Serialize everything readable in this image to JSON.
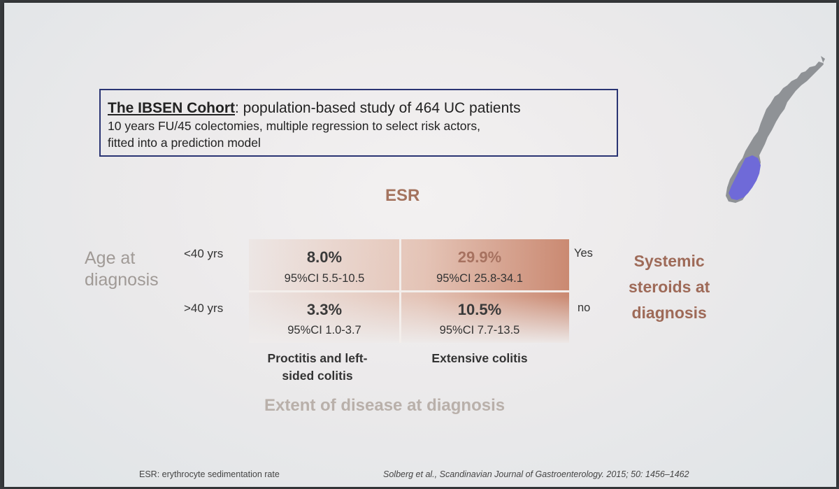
{
  "cohort": {
    "name": "The IBSEN Cohort",
    "summary": ": population-based study of 464 UC patients",
    "line2": "10 years FU/45 colectomies, multiple regression to select risk  actors,",
    "line3": "fitted into a prediction model"
  },
  "esr_heading": "ESR",
  "axis_labels": {
    "age": [
      "Age at",
      "diagnosis"
    ],
    "rows": [
      "<40 yrs",
      ">40 yrs"
    ],
    "steroids_options": [
      "Yes",
      "no"
    ],
    "steroids": [
      "Systemic",
      "steroids at",
      "diagnosis"
    ],
    "columns": [
      [
        "Proctitis and left-",
        "sided colitis"
      ],
      [
        "Extensive colitis"
      ]
    ],
    "extent": "Extent of disease at diagnosis"
  },
  "cells": [
    {
      "value": "8.0%",
      "ci": "95%CI 5.5-10.5"
    },
    {
      "value": "29.9%",
      "ci": "95%CI 25.8-34.1"
    },
    {
      "value": "3.3%",
      "ci": "95%CI 1.0-3.7"
    },
    {
      "value": "10.5%",
      "ci": "95%CI 7.7-13.5"
    }
  ],
  "footnote": "ESR: erythrocyte sedimentation rate",
  "citation": "Solberg et al., Scandinavian Journal of Gastroenterology. 2015; 50: 1456–1462",
  "colors": {
    "box_border": "#2a3473",
    "accent": "#a4735e",
    "map_land": "#8f9296",
    "map_highlight": "#6f6ad8"
  },
  "icons": {
    "map": "norway-map-icon"
  }
}
